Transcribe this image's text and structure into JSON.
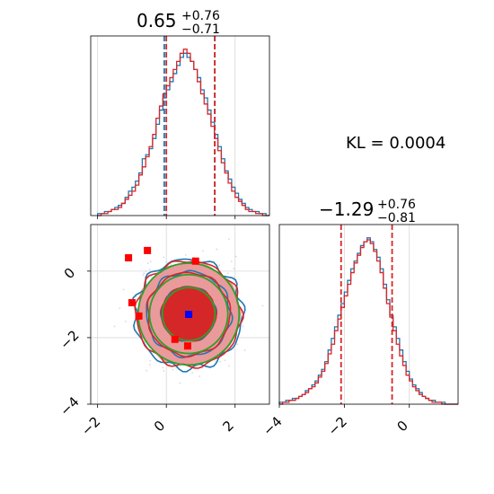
{
  "kl_label": "KL = 0.0004",
  "colors": {
    "blue": "#1f77b4",
    "red": "#d62728",
    "green": "#2ca02c",
    "pink_fill": "#ea9a9a",
    "inner_fill": "#d62728",
    "scatter_red": "#ff0000",
    "scatter_blue": "#0000ff"
  },
  "chart_data": [
    {
      "type": "histogram",
      "panel": "marginal-x",
      "title": {
        "median": "0.65",
        "plus": "+0.76",
        "minus": "−0.71"
      },
      "xlim": [
        -2.2,
        3.0
      ],
      "vlines_blue": [
        -0.06,
        1.41
      ],
      "vlines_red": [
        0.0,
        1.41
      ],
      "bins": [
        -2.0,
        -1.9,
        -1.8,
        -1.7,
        -1.6,
        -1.5,
        -1.4,
        -1.3,
        -1.2,
        -1.1,
        -1.0,
        -0.9,
        -0.8,
        -0.7,
        -0.6,
        -0.5,
        -0.4,
        -0.3,
        -0.2,
        -0.1,
        0.0,
        0.1,
        0.2,
        0.3,
        0.4,
        0.5,
        0.6,
        0.7,
        0.8,
        0.9,
        1.0,
        1.1,
        1.2,
        1.3,
        1.4,
        1.5,
        1.6,
        1.7,
        1.8,
        1.9,
        2.0,
        2.1,
        2.2,
        2.3,
        2.4,
        2.5,
        2.6,
        2.7,
        2.8,
        2.9
      ],
      "series": [
        {
          "color": "blue",
          "values": [
            1,
            1,
            2,
            2,
            3,
            4,
            5,
            6,
            9,
            12,
            14,
            17,
            21,
            28,
            30,
            33,
            38,
            45,
            52,
            58,
            62,
            66,
            70,
            74,
            78,
            80,
            78,
            76,
            72,
            68,
            62,
            58,
            52,
            46,
            40,
            34,
            28,
            22,
            18,
            14,
            11,
            8,
            6,
            4,
            3,
            2,
            2,
            1,
            1,
            0
          ]
        },
        {
          "color": "red",
          "values": [
            0,
            1,
            1,
            2,
            3,
            3,
            4,
            6,
            8,
            10,
            12,
            15,
            20,
            24,
            29,
            34,
            40,
            48,
            54,
            60,
            64,
            68,
            72,
            76,
            80,
            82,
            80,
            76,
            72,
            66,
            60,
            55,
            50,
            44,
            38,
            32,
            26,
            21,
            16,
            12,
            9,
            7,
            5,
            3,
            2,
            2,
            1,
            1,
            0,
            0
          ]
        }
      ]
    },
    {
      "type": "histogram",
      "panel": "marginal-y",
      "title": {
        "median": "−1.29",
        "plus": "+0.76",
        "minus": "−0.81"
      },
      "xlim": [
        -4.0,
        1.5
      ],
      "vlines_red": [
        -2.1,
        -0.53
      ],
      "bins": [
        -4.0,
        -3.9,
        -3.8,
        -3.7,
        -3.6,
        -3.5,
        -3.4,
        -3.3,
        -3.2,
        -3.1,
        -3.0,
        -2.9,
        -2.8,
        -2.7,
        -2.6,
        -2.5,
        -2.4,
        -2.3,
        -2.2,
        -2.1,
        -2.0,
        -1.9,
        -1.8,
        -1.7,
        -1.6,
        -1.5,
        -1.4,
        -1.3,
        -1.2,
        -1.1,
        -1.0,
        -0.9,
        -0.8,
        -0.7,
        -0.6,
        -0.5,
        -0.4,
        -0.3,
        -0.2,
        -0.1,
        0.0,
        0.1,
        0.2,
        0.3,
        0.4,
        0.5,
        0.6,
        0.7,
        0.8,
        0.9,
        1.0,
        1.1,
        1.2,
        1.3,
        1.4
      ],
      "series": [
        {
          "color": "blue",
          "values": [
            1,
            1,
            2,
            2,
            3,
            3,
            4,
            5,
            7,
            8,
            10,
            12,
            15,
            18,
            22,
            28,
            34,
            40,
            46,
            52,
            58,
            64,
            70,
            74,
            78,
            82,
            84,
            86,
            84,
            80,
            76,
            70,
            62,
            54,
            46,
            40,
            34,
            28,
            22,
            17,
            13,
            10,
            8,
            6,
            4,
            3,
            2,
            2,
            1,
            1,
            1,
            0,
            0,
            0,
            0
          ]
        },
        {
          "color": "red",
          "values": [
            0,
            1,
            1,
            2,
            2,
            3,
            4,
            5,
            6,
            8,
            9,
            11,
            14,
            17,
            21,
            26,
            31,
            38,
            44,
            50,
            56,
            62,
            68,
            73,
            77,
            81,
            84,
            85,
            83,
            79,
            74,
            68,
            60,
            52,
            45,
            38,
            31,
            25,
            20,
            15,
            12,
            9,
            7,
            5,
            4,
            3,
            2,
            1,
            1,
            1,
            0,
            0,
            0,
            0,
            0
          ]
        }
      ]
    },
    {
      "type": "scatter",
      "panel": "joint",
      "xlim": [
        -2.2,
        3.0
      ],
      "ylim": [
        -4.0,
        1.4
      ],
      "levels_sigma": [
        1.0,
        1.6,
        2.0
      ],
      "center": [
        0.65,
        -1.29
      ],
      "red_points": [
        [
          -1.1,
          0.4
        ],
        [
          -0.55,
          0.62
        ],
        [
          -0.8,
          -1.35
        ],
        [
          0.25,
          -2.05
        ],
        [
          0.62,
          -2.25
        ],
        [
          -1.0,
          -0.95
        ],
        [
          0.85,
          0.3
        ]
      ],
      "blue_point": [
        0.65,
        -1.3
      ]
    }
  ]
}
